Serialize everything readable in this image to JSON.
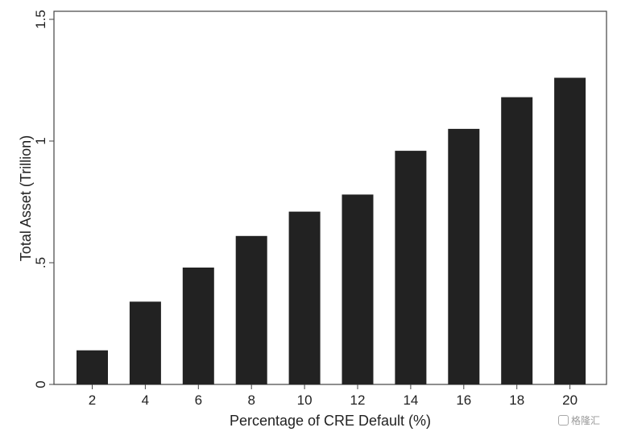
{
  "chart_data": {
    "type": "bar",
    "categories": [
      "2",
      "4",
      "6",
      "8",
      "10",
      "12",
      "14",
      "16",
      "18",
      "20"
    ],
    "values": [
      0.14,
      0.34,
      0.48,
      0.61,
      0.71,
      0.78,
      0.96,
      1.05,
      1.18,
      1.26
    ],
    "title": "",
    "xlabel": "Percentage of CRE Default (%)",
    "ylabel": "Total Asset (Trillion)",
    "ylim": [
      0,
      1.5
    ],
    "yticks": [
      0,
      0.5,
      1,
      1.5
    ],
    "ytick_labels": [
      "0",
      ".5",
      "1",
      "1.5"
    ],
    "grid": false,
    "bar_color": "#222222"
  },
  "watermark": {
    "text": "格隆汇"
  }
}
